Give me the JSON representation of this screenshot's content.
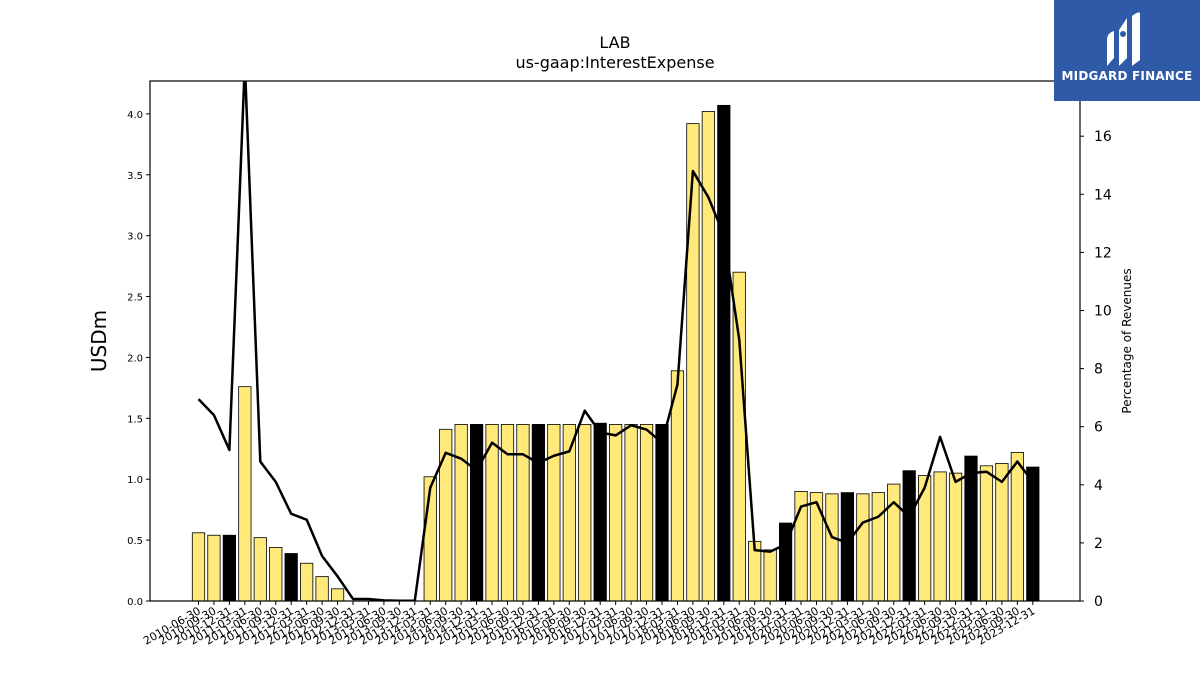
{
  "chart_data": {
    "type": "bar",
    "title": "LAB",
    "subtitle": "us-gaap:InterestExpense",
    "ylabel": "USDm",
    "y2label": "Percentage of Revenues",
    "ylim": [
      0,
      4.27
    ],
    "y2lim": [
      0,
      17.9
    ],
    "yticks": [
      "0.0",
      "0.5",
      "1.0",
      "1.5",
      "2.0",
      "2.5",
      "3.0",
      "3.5",
      "4.0"
    ],
    "y2ticks": [
      "0",
      "2",
      "4",
      "6",
      "8",
      "10",
      "12",
      "14",
      "16"
    ],
    "grid": false,
    "categories": [
      "2010-06-30",
      "2010-09-30",
      "2010-12-31",
      "2011-03-31",
      "2011-06-30",
      "2011-09-30",
      "2011-12-31",
      "2012-03-31",
      "2012-06-30",
      "2012-09-30",
      "2012-12-31",
      "2013-03-31",
      "2013-06-30",
      "2013-09-30",
      "2013-12-31",
      "2014-03-31",
      "2014-06-30",
      "2014-09-30",
      "2014-12-31",
      "2015-03-31",
      "2015-06-30",
      "2015-09-30",
      "2015-12-31",
      "2016-03-31",
      "2016-06-30",
      "2016-09-30",
      "2016-12-31",
      "2017-03-31",
      "2017-06-30",
      "2017-09-30",
      "2017-12-31",
      "2018-03-31",
      "2018-06-30",
      "2018-09-30",
      "2018-12-31",
      "2019-03-31",
      "2019-06-30",
      "2019-09-30",
      "2019-12-31",
      "2020-03-31",
      "2020-06-30",
      "2020-09-30",
      "2020-12-31",
      "2021-03-31",
      "2021-06-30",
      "2021-09-30",
      "2021-12-31",
      "2022-03-31",
      "2022-06-30",
      "2022-09-30",
      "2022-12-31",
      "2023-03-31",
      "2023-06-30",
      "2023-09-30",
      "2023-12-31"
    ],
    "series": [
      {
        "type": "bar",
        "values": [
          0.56,
          0.54,
          0.54,
          1.76,
          0.52,
          0.44,
          0.39,
          0.31,
          0.2,
          0.1,
          0,
          0,
          0,
          0,
          0,
          1.02,
          1.41,
          1.45,
          1.45,
          1.45,
          1.45,
          1.45,
          1.45,
          1.45,
          1.45,
          1.45,
          1.46,
          1.45,
          1.45,
          1.45,
          1.45,
          1.89,
          3.92,
          4.02,
          4.07,
          2.7,
          0.49,
          0.42,
          0.64,
          0.9,
          0.89,
          0.88,
          0.89,
          0.88,
          0.89,
          0.96,
          1.07,
          1.03,
          1.06,
          1.05,
          1.19,
          1.11,
          1.13,
          1.22,
          1.1
        ],
        "highlight": [
          false,
          false,
          true,
          false,
          false,
          false,
          true,
          false,
          false,
          false,
          false,
          false,
          false,
          false,
          false,
          false,
          false,
          false,
          true,
          false,
          false,
          false,
          true,
          false,
          false,
          false,
          true,
          false,
          false,
          false,
          true,
          false,
          false,
          false,
          true,
          false,
          false,
          false,
          true,
          false,
          false,
          false,
          true,
          false,
          false,
          false,
          true,
          false,
          false,
          false,
          true,
          false,
          false,
          false,
          true
        ],
        "color": "#ffe97a",
        "highlight_color": "#000000"
      },
      {
        "type": "line",
        "axis": "right",
        "values": [
          6.95,
          6.4,
          5.2,
          18.5,
          4.8,
          4.1,
          3.0,
          2.8,
          1.55,
          0.85,
          0.07,
          0.07,
          0.02,
          0.01,
          0.01,
          3.9,
          5.1,
          4.9,
          4.5,
          5.45,
          5.05,
          5.05,
          4.75,
          5.0,
          5.15,
          6.55,
          5.8,
          5.7,
          6.05,
          5.9,
          5.45,
          7.45,
          14.8,
          13.9,
          12.6,
          9.0,
          1.75,
          1.7,
          1.95,
          3.25,
          3.4,
          2.2,
          2.0,
          2.7,
          2.9,
          3.4,
          2.9,
          3.9,
          5.65,
          4.1,
          4.4,
          4.45,
          4.1,
          4.8,
          4.1
        ],
        "color": "#000000"
      }
    ]
  },
  "logo": {
    "text": "MIDGARD FINANCE"
  }
}
